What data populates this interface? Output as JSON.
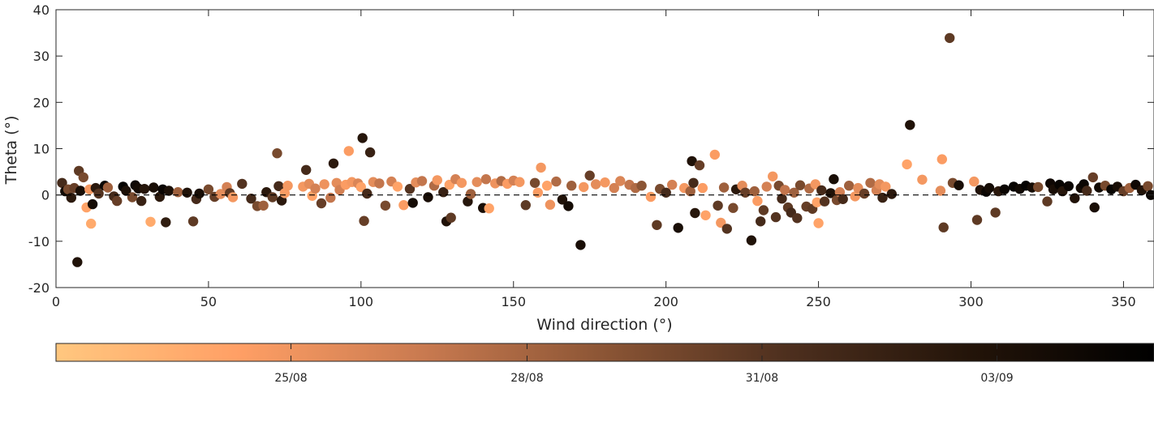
{
  "chart_data": {
    "type": "scatter",
    "title": "",
    "xlabel": "Wind direction (°)",
    "ylabel": "Theta (°)",
    "xlim": [
      0,
      360
    ],
    "ylim": [
      -20,
      40
    ],
    "xticks": [
      0,
      50,
      100,
      150,
      200,
      250,
      300,
      350
    ],
    "yticks": [
      -20,
      -10,
      0,
      10,
      20,
      30,
      40
    ],
    "grid": false,
    "reference_line": {
      "y": 0,
      "style": "dashed",
      "color": "#000000"
    },
    "colorbar": {
      "placement": "bottom",
      "colormap": "copper (reversed)",
      "stops": [
        "#ffc77f",
        "#ff9f65",
        "#c97a50",
        "#8b5535",
        "#4d2f1e",
        "#231409",
        "#000000"
      ],
      "range": [
        "2024-08-22",
        "2024-09-05"
      ],
      "tick_labels": [
        "25/08",
        "28/08",
        "31/08",
        "03/09"
      ],
      "tick_positions": [
        0.214,
        0.429,
        0.643,
        0.857
      ]
    },
    "point_color_scale": "date (0 = earliest, light; 1 = latest, dark)",
    "points": [
      {
        "x": 2,
        "y": 2.6,
        "c": 0.7
      },
      {
        "x": 3,
        "y": 0.8,
        "c": 0.92
      },
      {
        "x": 4,
        "y": 1.2,
        "c": 0.55
      },
      {
        "x": 5,
        "y": -0.6,
        "c": 0.8
      },
      {
        "x": 6,
        "y": 1.5,
        "c": 0.6
      },
      {
        "x": 7,
        "y": -14.5,
        "c": 0.85
      },
      {
        "x": 7.5,
        "y": 5.2,
        "c": 0.62
      },
      {
        "x": 8,
        "y": 0.9,
        "c": 0.88
      },
      {
        "x": 9,
        "y": 3.8,
        "c": 0.55
      },
      {
        "x": 10,
        "y": -2.7,
        "c": 0.15
      },
      {
        "x": 11,
        "y": 1.2,
        "c": 0.2
      },
      {
        "x": 11.5,
        "y": -6.2,
        "c": 0.12
      },
      {
        "x": 12,
        "y": -2.0,
        "c": 0.9
      },
      {
        "x": 13,
        "y": 1.5,
        "c": 0.8
      },
      {
        "x": 14,
        "y": 0.3,
        "c": 0.65
      },
      {
        "x": 16,
        "y": 2.0,
        "c": 0.95
      },
      {
        "x": 17,
        "y": 1.6,
        "c": 0.45
      },
      {
        "x": 19,
        "y": -0.3,
        "c": 0.7
      },
      {
        "x": 20,
        "y": -1.3,
        "c": 0.6
      },
      {
        "x": 22,
        "y": 1.8,
        "c": 0.97
      },
      {
        "x": 23,
        "y": 0.9,
        "c": 0.86
      },
      {
        "x": 25,
        "y": -0.5,
        "c": 0.55
      },
      {
        "x": 26,
        "y": 2.1,
        "c": 0.93
      },
      {
        "x": 27,
        "y": 1.4,
        "c": 0.9
      },
      {
        "x": 28,
        "y": -1.3,
        "c": 0.75
      },
      {
        "x": 29,
        "y": 1.3,
        "c": 0.82
      },
      {
        "x": 31,
        "y": -5.8,
        "c": 0.12
      },
      {
        "x": 32,
        "y": 1.6,
        "c": 0.88
      },
      {
        "x": 34,
        "y": -0.4,
        "c": 0.8
      },
      {
        "x": 35,
        "y": 1.2,
        "c": 0.95
      },
      {
        "x": 36,
        "y": -5.9,
        "c": 0.78
      },
      {
        "x": 37,
        "y": 0.9,
        "c": 0.86
      },
      {
        "x": 40,
        "y": 0.6,
        "c": 0.45
      },
      {
        "x": 43,
        "y": 0.5,
        "c": 0.85
      },
      {
        "x": 45,
        "y": -5.7,
        "c": 0.62
      },
      {
        "x": 46,
        "y": -0.9,
        "c": 0.7
      },
      {
        "x": 47,
        "y": 0.3,
        "c": 0.88
      },
      {
        "x": 50,
        "y": 1.2,
        "c": 0.55
      },
      {
        "x": 52,
        "y": -0.4,
        "c": 0.6
      },
      {
        "x": 54,
        "y": 0.2,
        "c": 0.25
      },
      {
        "x": 56,
        "y": 1.7,
        "c": 0.3
      },
      {
        "x": 57,
        "y": 0.4,
        "c": 0.62
      },
      {
        "x": 58,
        "y": -0.5,
        "c": 0.2
      },
      {
        "x": 61,
        "y": 2.4,
        "c": 0.65
      },
      {
        "x": 64,
        "y": -0.8,
        "c": 0.7
      },
      {
        "x": 66,
        "y": -2.4,
        "c": 0.55
      },
      {
        "x": 68,
        "y": -2.3,
        "c": 0.45
      },
      {
        "x": 69,
        "y": 0.6,
        "c": 0.8
      },
      {
        "x": 71,
        "y": -0.5,
        "c": 0.62
      },
      {
        "x": 72.5,
        "y": 9.0,
        "c": 0.55
      },
      {
        "x": 73,
        "y": 1.9,
        "c": 0.7
      },
      {
        "x": 74,
        "y": -1.2,
        "c": 0.8
      },
      {
        "x": 75,
        "y": 0.4,
        "c": 0.18
      },
      {
        "x": 76,
        "y": 2.0,
        "c": 0.2
      },
      {
        "x": 81,
        "y": 1.8,
        "c": 0.2
      },
      {
        "x": 82,
        "y": 5.4,
        "c": 0.7
      },
      {
        "x": 83,
        "y": 2.4,
        "c": 0.25
      },
      {
        "x": 84,
        "y": -0.2,
        "c": 0.15
      },
      {
        "x": 85,
        "y": 1.4,
        "c": 0.3
      },
      {
        "x": 87,
        "y": -1.8,
        "c": 0.6
      },
      {
        "x": 88,
        "y": 2.3,
        "c": 0.22
      },
      {
        "x": 90,
        "y": -0.6,
        "c": 0.35
      },
      {
        "x": 91,
        "y": 6.8,
        "c": 0.8
      },
      {
        "x": 92,
        "y": 2.6,
        "c": 0.25
      },
      {
        "x": 93,
        "y": 1.1,
        "c": 0.3
      },
      {
        "x": 95,
        "y": 2.2,
        "c": 0.18
      },
      {
        "x": 96,
        "y": 9.5,
        "c": 0.18
      },
      {
        "x": 97,
        "y": 2.8,
        "c": 0.2
      },
      {
        "x": 99,
        "y": 2.5,
        "c": 0.28
      },
      {
        "x": 100,
        "y": 1.7,
        "c": 0.15
      },
      {
        "x": 100.5,
        "y": 12.3,
        "c": 0.82
      },
      {
        "x": 101,
        "y": -5.6,
        "c": 0.6
      },
      {
        "x": 102,
        "y": 0.3,
        "c": 0.7
      },
      {
        "x": 103,
        "y": 9.2,
        "c": 0.75
      },
      {
        "x": 104,
        "y": 2.8,
        "c": 0.25
      },
      {
        "x": 106,
        "y": 2.5,
        "c": 0.35
      },
      {
        "x": 108,
        "y": -2.3,
        "c": 0.55
      },
      {
        "x": 110,
        "y": 2.9,
        "c": 0.3
      },
      {
        "x": 112,
        "y": 1.8,
        "c": 0.15
      },
      {
        "x": 114,
        "y": -2.2,
        "c": 0.18
      },
      {
        "x": 116,
        "y": 1.3,
        "c": 0.65
      },
      {
        "x": 117,
        "y": -1.7,
        "c": 0.9
      },
      {
        "x": 118,
        "y": 2.7,
        "c": 0.25
      },
      {
        "x": 120,
        "y": 3.0,
        "c": 0.35
      },
      {
        "x": 122,
        "y": -0.5,
        "c": 0.88
      },
      {
        "x": 124,
        "y": 2.0,
        "c": 0.4
      },
      {
        "x": 125,
        "y": 3.2,
        "c": 0.2
      },
      {
        "x": 127,
        "y": 0.6,
        "c": 0.75
      },
      {
        "x": 128,
        "y": -5.7,
        "c": 0.85
      },
      {
        "x": 129,
        "y": 2.2,
        "c": 0.15
      },
      {
        "x": 129.5,
        "y": -4.9,
        "c": 0.62
      },
      {
        "x": 131,
        "y": 3.4,
        "c": 0.3
      },
      {
        "x": 133,
        "y": 2.6,
        "c": 0.2
      },
      {
        "x": 135,
        "y": -1.4,
        "c": 0.82
      },
      {
        "x": 136,
        "y": 0.2,
        "c": 0.45
      },
      {
        "x": 138,
        "y": 2.8,
        "c": 0.25
      },
      {
        "x": 140,
        "y": -2.8,
        "c": 0.88
      },
      {
        "x": 141,
        "y": 3.4,
        "c": 0.35
      },
      {
        "x": 142,
        "y": -2.9,
        "c": 0.15
      },
      {
        "x": 144,
        "y": 2.5,
        "c": 0.22
      },
      {
        "x": 146,
        "y": 3.0,
        "c": 0.4
      },
      {
        "x": 148,
        "y": 2.4,
        "c": 0.18
      },
      {
        "x": 150,
        "y": 3.1,
        "c": 0.3
      },
      {
        "x": 152,
        "y": 2.8,
        "c": 0.2
      },
      {
        "x": 154,
        "y": -2.2,
        "c": 0.62
      },
      {
        "x": 157,
        "y": 2.6,
        "c": 0.55
      },
      {
        "x": 158,
        "y": 0.5,
        "c": 0.18
      },
      {
        "x": 159,
        "y": 5.9,
        "c": 0.2
      },
      {
        "x": 161,
        "y": 2.0,
        "c": 0.15
      },
      {
        "x": 162,
        "y": -2.1,
        "c": 0.22
      },
      {
        "x": 164,
        "y": 2.9,
        "c": 0.4
      },
      {
        "x": 166,
        "y": -1.0,
        "c": 0.85
      },
      {
        "x": 168,
        "y": -2.4,
        "c": 0.9
      },
      {
        "x": 169,
        "y": 2.0,
        "c": 0.45
      },
      {
        "x": 172,
        "y": -10.8,
        "c": 0.88
      },
      {
        "x": 173,
        "y": 1.7,
        "c": 0.2
      },
      {
        "x": 175,
        "y": 4.2,
        "c": 0.6
      },
      {
        "x": 177,
        "y": 2.3,
        "c": 0.25
      },
      {
        "x": 180,
        "y": 2.7,
        "c": 0.2
      },
      {
        "x": 183,
        "y": 1.5,
        "c": 0.3
      },
      {
        "x": 185,
        "y": 3.0,
        "c": 0.28
      },
      {
        "x": 188,
        "y": 2.2,
        "c": 0.35
      },
      {
        "x": 190,
        "y": 1.5,
        "c": 0.4
      },
      {
        "x": 192,
        "y": 2.0,
        "c": 0.5
      },
      {
        "x": 195,
        "y": -0.4,
        "c": 0.18
      },
      {
        "x": 197,
        "y": -6.5,
        "c": 0.62
      },
      {
        "x": 198,
        "y": 1.3,
        "c": 0.55
      },
      {
        "x": 200,
        "y": 0.5,
        "c": 0.7
      },
      {
        "x": 202,
        "y": 2.2,
        "c": 0.3
      },
      {
        "x": 204,
        "y": -7.1,
        "c": 0.88
      },
      {
        "x": 206,
        "y": 1.5,
        "c": 0.2
      },
      {
        "x": 208,
        "y": 0.8,
        "c": 0.45
      },
      {
        "x": 208.5,
        "y": 7.3,
        "c": 0.85
      },
      {
        "x": 209,
        "y": 2.6,
        "c": 0.7
      },
      {
        "x": 209.5,
        "y": -3.9,
        "c": 0.82
      },
      {
        "x": 211,
        "y": 6.4,
        "c": 0.6
      },
      {
        "x": 212,
        "y": 1.5,
        "c": 0.18
      },
      {
        "x": 213,
        "y": -4.4,
        "c": 0.15
      },
      {
        "x": 216,
        "y": 8.7,
        "c": 0.18
      },
      {
        "x": 217,
        "y": -2.3,
        "c": 0.62
      },
      {
        "x": 218,
        "y": -6.0,
        "c": 0.2
      },
      {
        "x": 219,
        "y": 1.6,
        "c": 0.45
      },
      {
        "x": 220,
        "y": -7.3,
        "c": 0.65
      },
      {
        "x": 222,
        "y": -2.8,
        "c": 0.55
      },
      {
        "x": 223,
        "y": 1.2,
        "c": 0.8
      },
      {
        "x": 225,
        "y": 2.0,
        "c": 0.25
      },
      {
        "x": 226,
        "y": 0.5,
        "c": 0.6
      },
      {
        "x": 228,
        "y": -9.8,
        "c": 0.85
      },
      {
        "x": 229,
        "y": 0.8,
        "c": 0.45
      },
      {
        "x": 230,
        "y": -1.3,
        "c": 0.18
      },
      {
        "x": 231,
        "y": -5.7,
        "c": 0.7
      },
      {
        "x": 232,
        "y": -3.3,
        "c": 0.62
      },
      {
        "x": 233,
        "y": 1.8,
        "c": 0.3
      },
      {
        "x": 235,
        "y": 4.0,
        "c": 0.2
      },
      {
        "x": 236,
        "y": -4.8,
        "c": 0.65
      },
      {
        "x": 237,
        "y": 2.0,
        "c": 0.55
      },
      {
        "x": 238,
        "y": -0.8,
        "c": 0.7
      },
      {
        "x": 239,
        "y": 1.1,
        "c": 0.35
      },
      {
        "x": 240,
        "y": -2.7,
        "c": 0.62
      },
      {
        "x": 241,
        "y": -3.8,
        "c": 0.7
      },
      {
        "x": 242,
        "y": 0.5,
        "c": 0.45
      },
      {
        "x": 243,
        "y": -5.0,
        "c": 0.65
      },
      {
        "x": 244,
        "y": 2.1,
        "c": 0.55
      },
      {
        "x": 246,
        "y": -2.5,
        "c": 0.6
      },
      {
        "x": 247,
        "y": 1.4,
        "c": 0.4
      },
      {
        "x": 248,
        "y": -3.0,
        "c": 0.62
      },
      {
        "x": 249,
        "y": 2.3,
        "c": 0.2
      },
      {
        "x": 249.5,
        "y": -1.6,
        "c": 0.15
      },
      {
        "x": 250,
        "y": -6.1,
        "c": 0.15
      },
      {
        "x": 251,
        "y": 1.0,
        "c": 0.7
      },
      {
        "x": 252,
        "y": -1.4,
        "c": 0.65
      },
      {
        "x": 254,
        "y": 0.4,
        "c": 0.85
      },
      {
        "x": 255,
        "y": 3.4,
        "c": 0.88
      },
      {
        "x": 256,
        "y": -1.1,
        "c": 0.55
      },
      {
        "x": 257,
        "y": 0.6,
        "c": 0.3
      },
      {
        "x": 258,
        "y": -0.9,
        "c": 0.7
      },
      {
        "x": 260,
        "y": 2.0,
        "c": 0.45
      },
      {
        "x": 262,
        "y": -0.3,
        "c": 0.2
      },
      {
        "x": 263,
        "y": 1.5,
        "c": 0.25
      },
      {
        "x": 265,
        "y": 0.3,
        "c": 0.6
      },
      {
        "x": 267,
        "y": 2.6,
        "c": 0.4
      },
      {
        "x": 269,
        "y": 1.0,
        "c": 0.3
      },
      {
        "x": 270,
        "y": 2.3,
        "c": 0.25
      },
      {
        "x": 271,
        "y": -0.6,
        "c": 0.75
      },
      {
        "x": 272,
        "y": 1.8,
        "c": 0.2
      },
      {
        "x": 274,
        "y": 0.2,
        "c": 0.8
      },
      {
        "x": 279,
        "y": 6.6,
        "c": 0.15
      },
      {
        "x": 280,
        "y": 15.1,
        "c": 0.85
      },
      {
        "x": 284,
        "y": 3.3,
        "c": 0.2
      },
      {
        "x": 290,
        "y": 0.9,
        "c": 0.25
      },
      {
        "x": 290.5,
        "y": 7.7,
        "c": 0.18
      },
      {
        "x": 291,
        "y": -7.0,
        "c": 0.62
      },
      {
        "x": 293,
        "y": 33.9,
        "c": 0.62
      },
      {
        "x": 294,
        "y": 2.6,
        "c": 0.55
      },
      {
        "x": 296,
        "y": 2.1,
        "c": 0.88
      },
      {
        "x": 301,
        "y": 2.9,
        "c": 0.2
      },
      {
        "x": 302,
        "y": -5.4,
        "c": 0.62
      },
      {
        "x": 303,
        "y": 1.1,
        "c": 0.85
      },
      {
        "x": 305,
        "y": 0.7,
        "c": 0.95
      },
      {
        "x": 306,
        "y": 1.5,
        "c": 0.9
      },
      {
        "x": 308,
        "y": -3.8,
        "c": 0.62
      },
      {
        "x": 309,
        "y": 0.8,
        "c": 0.8
      },
      {
        "x": 311,
        "y": 1.2,
        "c": 0.95
      },
      {
        "x": 314,
        "y": 1.8,
        "c": 0.96
      },
      {
        "x": 316,
        "y": 1.3,
        "c": 0.92
      },
      {
        "x": 318,
        "y": 2.0,
        "c": 0.97
      },
      {
        "x": 320,
        "y": 1.6,
        "c": 0.9
      },
      {
        "x": 322,
        "y": 1.7,
        "c": 0.55
      },
      {
        "x": 325,
        "y": -1.4,
        "c": 0.62
      },
      {
        "x": 326,
        "y": 2.5,
        "c": 0.93
      },
      {
        "x": 327,
        "y": 1.2,
        "c": 0.88
      },
      {
        "x": 329,
        "y": 2.2,
        "c": 0.96
      },
      {
        "x": 330,
        "y": 0.8,
        "c": 0.82
      },
      {
        "x": 332,
        "y": 1.9,
        "c": 0.95
      },
      {
        "x": 334,
        "y": -0.7,
        "c": 0.85
      },
      {
        "x": 336,
        "y": 1.5,
        "c": 0.9
      },
      {
        "x": 337,
        "y": 2.3,
        "c": 0.95
      },
      {
        "x": 338,
        "y": 0.9,
        "c": 0.7
      },
      {
        "x": 340,
        "y": 3.8,
        "c": 0.6
      },
      {
        "x": 340.5,
        "y": -2.7,
        "c": 0.88
      },
      {
        "x": 342,
        "y": 1.6,
        "c": 0.92
      },
      {
        "x": 344,
        "y": 2.0,
        "c": 0.55
      },
      {
        "x": 346,
        "y": 1.2,
        "c": 0.96
      },
      {
        "x": 348,
        "y": 1.8,
        "c": 0.88
      },
      {
        "x": 350,
        "y": 0.8,
        "c": 0.6
      },
      {
        "x": 352,
        "y": 1.5,
        "c": 0.45
      },
      {
        "x": 354,
        "y": 2.2,
        "c": 0.93
      },
      {
        "x": 356,
        "y": 1.0,
        "c": 0.85
      },
      {
        "x": 358,
        "y": 1.9,
        "c": 0.55
      },
      {
        "x": 359,
        "y": 0.0,
        "c": 0.95
      }
    ]
  }
}
